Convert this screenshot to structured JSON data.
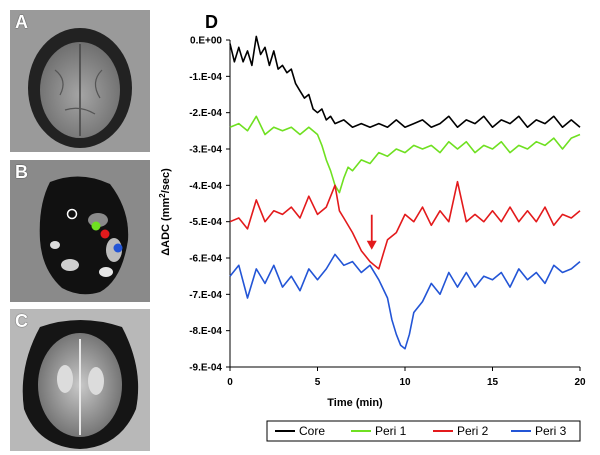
{
  "panels": {
    "a": {
      "letter": "A"
    },
    "b": {
      "letter": "B"
    },
    "c": {
      "letter": "C"
    },
    "d": {
      "letter": "D"
    }
  },
  "chart_data": {
    "type": "line",
    "xlabel": "Time (min)",
    "ylabel_main": "ΔADC (mm",
    "ylabel_sup": "2",
    "ylabel_tail": "/sec)",
    "xlim": [
      0,
      20
    ],
    "ylim": [
      -0.0009,
      0.0
    ],
    "xticks": [
      "0",
      "5",
      "10",
      "15",
      "20"
    ],
    "xtick_values": [
      0,
      5,
      10,
      15,
      20
    ],
    "yticks": [
      "0.E+00",
      "-1.E-04",
      "-2.E-04",
      "-3.E-04",
      "-4.E-04",
      "-5.E-04",
      "-6.E-04",
      "-7.E-04",
      "-8.E-04",
      "-9.E-04"
    ],
    "ytick_values": [
      0,
      -0.0001,
      -0.0002,
      -0.0003,
      -0.0004,
      -0.0005,
      -0.0006,
      -0.0007,
      -0.0008,
      -0.0009
    ],
    "grid": false,
    "legend_position": "bottom",
    "annotation": {
      "type": "arrow",
      "x": 8.1,
      "y": -0.00058,
      "color": "#e31a1c"
    },
    "series": [
      {
        "name": "Core",
        "color": "#000000",
        "x": [
          0,
          0.25,
          0.5,
          0.75,
          1,
          1.25,
          1.5,
          1.75,
          2,
          2.25,
          2.5,
          2.75,
          3,
          3.25,
          3.5,
          3.75,
          4,
          4.25,
          4.5,
          4.75,
          5,
          5.25,
          5.5,
          5.75,
          6,
          6.5,
          7,
          7.5,
          8,
          8.5,
          9,
          9.5,
          10,
          10.5,
          11,
          11.5,
          12,
          12.5,
          13,
          13.5,
          14,
          14.5,
          15,
          15.5,
          16,
          16.5,
          17,
          17.5,
          18,
          18.5,
          19,
          19.5,
          20
        ],
        "y": [
          -1e-05,
          -6e-05,
          -2e-05,
          -6e-05,
          -3e-05,
          -7e-05,
          1e-05,
          -4e-05,
          -2e-05,
          -7e-05,
          -3e-05,
          -8e-05,
          -7e-05,
          -9e-05,
          -8e-05,
          -0.00012,
          -0.00014,
          -0.00016,
          -0.00015,
          -0.00019,
          -0.0002,
          -0.00019,
          -0.00022,
          -0.00021,
          -0.00023,
          -0.00022,
          -0.00024,
          -0.00023,
          -0.00024,
          -0.00023,
          -0.00024,
          -0.00022,
          -0.00024,
          -0.00023,
          -0.00022,
          -0.00024,
          -0.00023,
          -0.00021,
          -0.00024,
          -0.00022,
          -0.00023,
          -0.00021,
          -0.00024,
          -0.00022,
          -0.00023,
          -0.00021,
          -0.00024,
          -0.00022,
          -0.00023,
          -0.00021,
          -0.00024,
          -0.00022,
          -0.00024
        ]
      },
      {
        "name": "Peri 1",
        "color": "#6fe021",
        "x": [
          0,
          0.5,
          1,
          1.5,
          2,
          2.5,
          3,
          3.5,
          4,
          4.5,
          5,
          5.25,
          5.5,
          5.75,
          6,
          6.25,
          6.5,
          6.75,
          7,
          7.5,
          8,
          8.5,
          9,
          9.5,
          10,
          10.5,
          11,
          11.5,
          12,
          12.5,
          13,
          13.5,
          14,
          14.5,
          15,
          15.5,
          16,
          16.5,
          17,
          17.5,
          18,
          18.5,
          19,
          19.5,
          20
        ],
        "y": [
          -0.00024,
          -0.00023,
          -0.00025,
          -0.00021,
          -0.00026,
          -0.00024,
          -0.00025,
          -0.00024,
          -0.00026,
          -0.00024,
          -0.00026,
          -0.00029,
          -0.00033,
          -0.00036,
          -0.0004,
          -0.00042,
          -0.00038,
          -0.00035,
          -0.00036,
          -0.00033,
          -0.00034,
          -0.00031,
          -0.00032,
          -0.0003,
          -0.00031,
          -0.00029,
          -0.0003,
          -0.00029,
          -0.00031,
          -0.00028,
          -0.0003,
          -0.00028,
          -0.00031,
          -0.00029,
          -0.0003,
          -0.00028,
          -0.00031,
          -0.00029,
          -0.0003,
          -0.00028,
          -0.00029,
          -0.00027,
          -0.0003,
          -0.00027,
          -0.00026
        ]
      },
      {
        "name": "Peri 2",
        "color": "#e31a1c",
        "x": [
          0,
          0.5,
          1,
          1.5,
          2,
          2.5,
          3,
          3.5,
          4,
          4.5,
          5,
          5.5,
          6,
          6.25,
          6.5,
          7,
          7.5,
          8,
          8.25,
          8.5,
          8.75,
          9,
          9.5,
          10,
          10.5,
          11,
          11.5,
          12,
          12.5,
          13,
          13.5,
          14,
          14.5,
          15,
          15.5,
          16,
          16.5,
          17,
          17.5,
          18,
          18.5,
          19,
          19.5,
          20
        ],
        "y": [
          -0.0005,
          -0.00049,
          -0.00052,
          -0.00044,
          -0.0005,
          -0.00047,
          -0.00048,
          -0.00046,
          -0.00049,
          -0.00043,
          -0.00048,
          -0.00046,
          -0.0004,
          -0.00047,
          -0.00049,
          -0.00053,
          -0.00058,
          -0.00061,
          -0.00062,
          -0.00063,
          -0.00059,
          -0.00055,
          -0.00053,
          -0.00048,
          -0.0005,
          -0.00046,
          -0.00051,
          -0.00047,
          -0.0005,
          -0.00039,
          -0.0005,
          -0.00048,
          -0.0005,
          -0.00047,
          -0.0005,
          -0.00046,
          -0.0005,
          -0.00047,
          -0.0005,
          -0.00046,
          -0.00051,
          -0.00048,
          -0.00049,
          -0.00047
        ]
      },
      {
        "name": "Peri 3",
        "color": "#2355d6",
        "x": [
          0,
          0.5,
          1,
          1.5,
          2,
          2.5,
          3,
          3.5,
          4,
          4.5,
          5,
          5.5,
          6,
          6.5,
          7,
          7.5,
          8,
          8.5,
          9,
          9.25,
          9.5,
          9.75,
          10,
          10.25,
          10.5,
          11,
          11.5,
          12,
          12.5,
          13,
          13.5,
          14,
          14.5,
          15,
          15.5,
          16,
          16.5,
          17,
          17.5,
          18,
          18.5,
          19,
          19.5,
          20
        ],
        "y": [
          -0.00065,
          -0.00062,
          -0.00071,
          -0.00063,
          -0.00067,
          -0.00062,
          -0.00068,
          -0.00065,
          -0.00069,
          -0.00063,
          -0.00066,
          -0.00063,
          -0.00059,
          -0.00062,
          -0.00061,
          -0.00064,
          -0.00062,
          -0.00066,
          -0.00071,
          -0.00077,
          -0.00081,
          -0.00084,
          -0.00085,
          -0.00081,
          -0.00075,
          -0.00072,
          -0.00067,
          -0.0007,
          -0.00064,
          -0.00068,
          -0.00064,
          -0.00068,
          -0.00065,
          -0.00066,
          -0.00064,
          -0.00068,
          -0.00063,
          -0.00066,
          -0.00064,
          -0.00067,
          -0.00062,
          -0.00064,
          -0.00063,
          -0.00061
        ]
      }
    ]
  }
}
